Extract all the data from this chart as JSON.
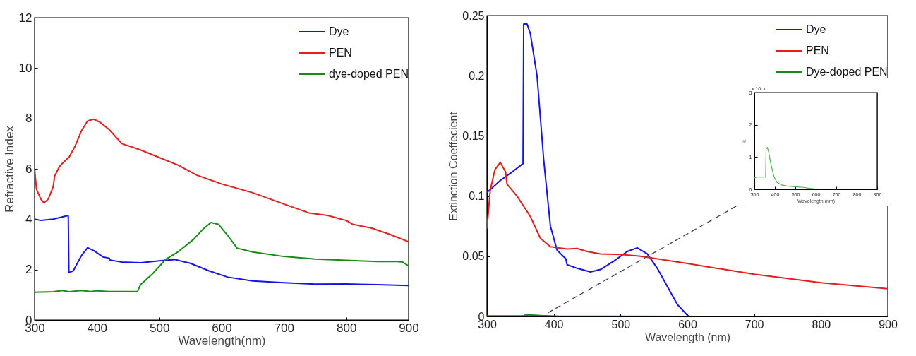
{
  "chart_data": [
    {
      "type": "line",
      "xlabel": "Wavelength(nm)",
      "ylabel": "Refractive Index",
      "xlim": [
        300,
        900
      ],
      "xticks": [
        300,
        400,
        500,
        600,
        700,
        800,
        900
      ],
      "ylim": [
        0,
        12
      ],
      "yticks": [
        0,
        2,
        4,
        6,
        8,
        10,
        12
      ],
      "legend": "top right",
      "grid": false,
      "series": [
        {
          "name": "Dye",
          "color": "#1414e6",
          "x": [
            300,
            310,
            330,
            354,
            355,
            362,
            375,
            385,
            395,
            410,
            420,
            421,
            440,
            470,
            500,
            525,
            550,
            580,
            610,
            650,
            700,
            750,
            800,
            850,
            900
          ],
          "values": [
            4.0,
            3.95,
            4.0,
            4.15,
            1.88,
            1.95,
            2.55,
            2.87,
            2.75,
            2.5,
            2.45,
            2.38,
            2.3,
            2.27,
            2.35,
            2.4,
            2.25,
            1.95,
            1.7,
            1.55,
            1.48,
            1.42,
            1.43,
            1.4,
            1.37
          ]
        },
        {
          "name": "PEN",
          "color": "#e41e1e",
          "x": [
            300,
            303,
            310,
            315,
            322,
            330,
            332,
            340,
            350,
            355,
            365,
            375,
            385,
            395,
            405,
            420,
            440,
            470,
            500,
            530,
            560,
            600,
            650,
            700,
            740,
            770,
            800,
            810,
            840,
            870,
            900
          ],
          "values": [
            6.0,
            5.2,
            4.8,
            4.65,
            4.8,
            5.3,
            5.7,
            6.1,
            6.35,
            6.45,
            6.9,
            7.5,
            7.9,
            7.97,
            7.85,
            7.55,
            7.0,
            6.75,
            6.45,
            6.15,
            5.75,
            5.4,
            5.05,
            4.6,
            4.25,
            4.15,
            3.95,
            3.8,
            3.65,
            3.4,
            3.1
          ]
        },
        {
          "name": "dye-doped PEN",
          "color": "#1a8a1a",
          "x": [
            300,
            330,
            345,
            355,
            375,
            390,
            400,
            420,
            440,
            465,
            470,
            490,
            510,
            530,
            555,
            570,
            583,
            595,
            610,
            625,
            650,
            700,
            750,
            800,
            850,
            880,
            890,
            900
          ],
          "values": [
            1.1,
            1.12,
            1.17,
            1.12,
            1.17,
            1.13,
            1.16,
            1.13,
            1.13,
            1.13,
            1.4,
            1.85,
            2.4,
            2.7,
            3.2,
            3.6,
            3.87,
            3.8,
            3.35,
            2.85,
            2.7,
            2.52,
            2.42,
            2.37,
            2.32,
            2.33,
            2.3,
            2.15
          ]
        }
      ]
    },
    {
      "type": "line",
      "xlabel": "Wavelength (nm)",
      "ylabel": "Extinction Coeffecient",
      "xlim": [
        300,
        900
      ],
      "xticks": [
        300,
        400,
        500,
        600,
        700,
        800,
        900
      ],
      "ylim": [
        0,
        0.25
      ],
      "yticks": [
        0,
        0.05,
        0.1,
        0.15,
        0.2,
        0.25
      ],
      "legend": "top right",
      "grid": false,
      "series": [
        {
          "name": "Dye",
          "color": "#1414e6",
          "x": [
            300,
            320,
            340,
            354,
            355,
            360,
            365,
            375,
            385,
            395,
            405,
            418,
            420,
            435,
            455,
            470,
            490,
            510,
            525,
            540,
            555,
            570,
            585,
            600,
            603
          ],
          "values": [
            0.103,
            0.113,
            0.121,
            0.127,
            0.243,
            0.243,
            0.235,
            0.2,
            0.13,
            0.075,
            0.055,
            0.048,
            0.043,
            0.04,
            0.037,
            0.039,
            0.046,
            0.054,
            0.057,
            0.052,
            0.04,
            0.025,
            0.01,
            0.001,
            0
          ]
        },
        {
          "name": "PEN",
          "color": "#e41e1e",
          "x": [
            300,
            305,
            312,
            320,
            328,
            330,
            345,
            365,
            380,
            395,
            420,
            435,
            450,
            470,
            500,
            530,
            600,
            700,
            800,
            900
          ],
          "values": [
            0.073,
            0.105,
            0.122,
            0.128,
            0.12,
            0.11,
            0.1,
            0.083,
            0.065,
            0.058,
            0.056,
            0.0565,
            0.054,
            0.052,
            0.0515,
            0.05,
            0.044,
            0.035,
            0.028,
            0.023
          ]
        },
        {
          "name": "Dye-doped PEN",
          "color": "#1a8a1a",
          "x": [
            300,
            355,
            357,
            363,
            380,
            410,
            500,
            600,
            900
          ],
          "values": [
            0.0004,
            0.0004,
            0.0012,
            0.0013,
            0.0008,
            0.0002,
            0.0001,
            0,
            0
          ]
        }
      ]
    },
    {
      "type": "line",
      "xlabel": "Wavelength (nm)",
      "ylabel": "k",
      "xlim": [
        300,
        900
      ],
      "xticks": [
        300,
        400,
        500,
        600,
        700,
        800,
        900
      ],
      "ylim": [
        0,
        3
      ],
      "yticks": [
        0,
        1,
        2,
        3
      ],
      "grid": false,
      "annotations": [
        "x 10⁻³"
      ],
      "series": [
        {
          "color": "#4caf50",
          "x": [
            300,
            310,
            355,
            357,
            363,
            370,
            380,
            395,
            410,
            430,
            460,
            500,
            540,
            570,
            600,
            650,
            900
          ],
          "values": [
            0.35,
            0.38,
            0.38,
            1.25,
            1.3,
            1.15,
            0.8,
            0.4,
            0.22,
            0.14,
            0.1,
            0.08,
            0.06,
            0.03,
            0.01,
            0,
            0
          ]
        }
      ]
    }
  ]
}
